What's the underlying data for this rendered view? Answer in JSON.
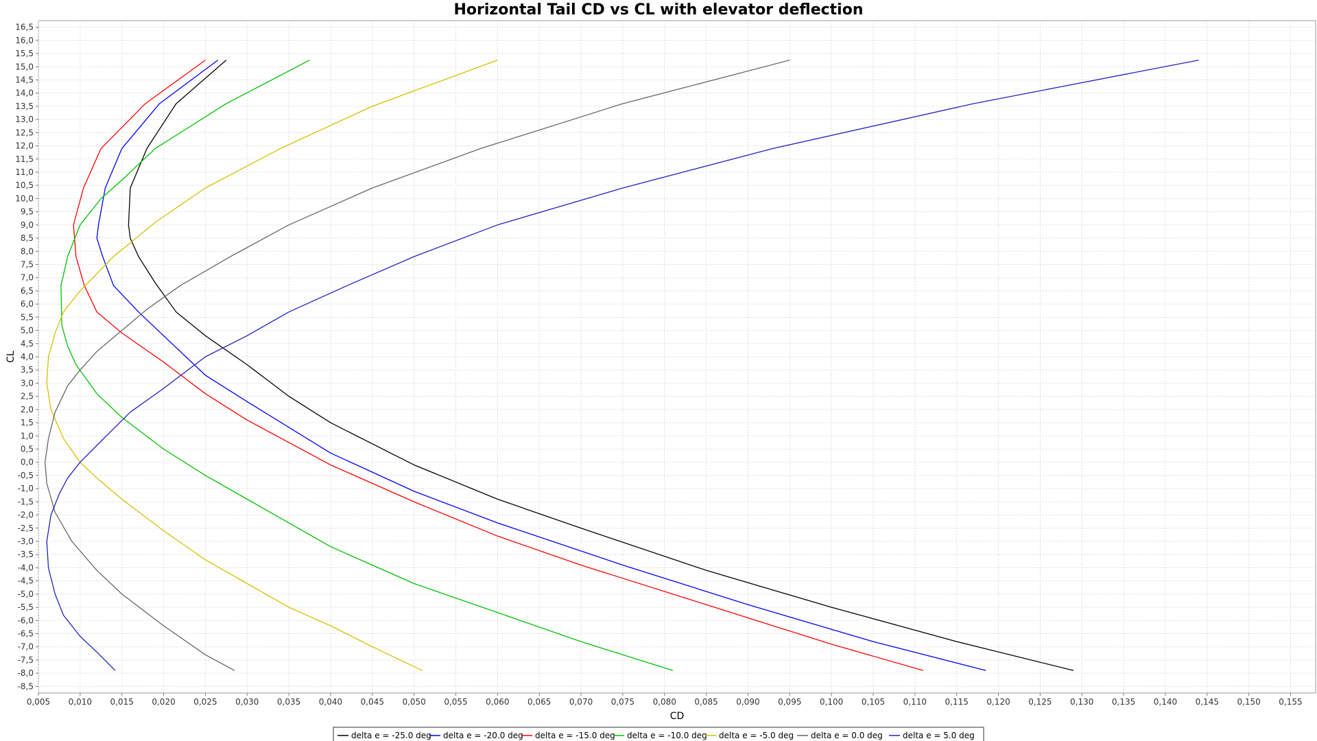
{
  "chart_data": {
    "type": "line",
    "title": "Horizontal Tail CD vs CL with elevator deflection",
    "xlabel": "CD",
    "ylabel": "CL",
    "xlim": [
      0.005,
      0.158
    ],
    "ylim": [
      -8.75,
      16.75
    ],
    "x_ticks": [
      "0,005",
      "0,010",
      "0,015",
      "0,020",
      "0,025",
      "0,030",
      "0,035",
      "0,040",
      "0,045",
      "0,050",
      "0,055",
      "0,060",
      "0,065",
      "0,070",
      "0,075",
      "0,080",
      "0,085",
      "0,090",
      "0,095",
      "0,100",
      "0,105",
      "0,110",
      "0,115",
      "0,120",
      "0,125",
      "0,130",
      "0,135",
      "0,140",
      "0,145",
      "0,150",
      "0,155"
    ],
    "y_ticks": [
      "-8,5",
      "-8,0",
      "-7,5",
      "-7,0",
      "-6,5",
      "-6,0",
      "-5,5",
      "-5,0",
      "-4,5",
      "-4,0",
      "-3,5",
      "-3,0",
      "-2,5",
      "-2,0",
      "-1,5",
      "-1,0",
      "-0,5",
      "0,0",
      "0,5",
      "1,0",
      "1,5",
      "2,0",
      "2,5",
      "3,0",
      "3,5",
      "4,0",
      "4,5",
      "5,0",
      "5,5",
      "6,0",
      "6,5",
      "7,0",
      "7,5",
      "8,0",
      "8,5",
      "9,0",
      "9,5",
      "10,0",
      "10,5",
      "11,0",
      "11,5",
      "12,0",
      "12,5",
      "13,0",
      "13,5",
      "14,0",
      "14,5",
      "15,0",
      "15,5",
      "16,0",
      "16,5"
    ],
    "grid": true,
    "legend_position": "bottom",
    "series": [
      {
        "name": "delta e = -25.0 deg",
        "color": "#000000",
        "points": [
          [
            0.129,
            -7.9
          ],
          [
            0.115,
            -6.8
          ],
          [
            0.1,
            -5.5
          ],
          [
            0.085,
            -4.1
          ],
          [
            0.07,
            -2.5
          ],
          [
            0.06,
            -1.4
          ],
          [
            0.05,
            -0.1
          ],
          [
            0.04,
            1.5
          ],
          [
            0.035,
            2.5
          ],
          [
            0.03,
            3.7
          ],
          [
            0.025,
            4.8
          ],
          [
            0.0215,
            5.7
          ],
          [
            0.019,
            6.8
          ],
          [
            0.017,
            7.8
          ],
          [
            0.016,
            8.5
          ],
          [
            0.0158,
            9.0
          ],
          [
            0.016,
            10.4
          ],
          [
            0.018,
            11.9
          ],
          [
            0.0215,
            13.6
          ],
          [
            0.0275,
            15.25
          ]
        ]
      },
      {
        "name": "delta e = -20.0 deg",
        "color": "#0000ff",
        "points": [
          [
            0.1185,
            -7.9
          ],
          [
            0.105,
            -6.8
          ],
          [
            0.09,
            -5.4
          ],
          [
            0.075,
            -3.9
          ],
          [
            0.06,
            -2.3
          ],
          [
            0.05,
            -1.1
          ],
          [
            0.04,
            0.35
          ],
          [
            0.03,
            2.3
          ],
          [
            0.025,
            3.3
          ],
          [
            0.02,
            4.8
          ],
          [
            0.017,
            5.7
          ],
          [
            0.014,
            6.7
          ],
          [
            0.0127,
            7.8
          ],
          [
            0.012,
            8.5
          ],
          [
            0.0122,
            9.0
          ],
          [
            0.013,
            10.4
          ],
          [
            0.015,
            11.9
          ],
          [
            0.0195,
            13.6
          ],
          [
            0.0265,
            15.25
          ]
        ]
      },
      {
        "name": "delta e = -15.0 deg",
        "color": "#ff0000",
        "points": [
          [
            0.111,
            -7.9
          ],
          [
            0.1,
            -6.9
          ],
          [
            0.085,
            -5.4
          ],
          [
            0.07,
            -3.9
          ],
          [
            0.06,
            -2.8
          ],
          [
            0.05,
            -1.5
          ],
          [
            0.04,
            -0.1
          ],
          [
            0.03,
            1.6
          ],
          [
            0.025,
            2.6
          ],
          [
            0.02,
            3.8
          ],
          [
            0.015,
            4.9
          ],
          [
            0.012,
            5.7
          ],
          [
            0.0105,
            6.7
          ],
          [
            0.0095,
            7.8
          ],
          [
            0.0092,
            9.0
          ],
          [
            0.0104,
            10.4
          ],
          [
            0.0125,
            11.9
          ],
          [
            0.0178,
            13.6
          ],
          [
            0.025,
            15.25
          ]
        ]
      },
      {
        "name": "delta e = -10.0 deg",
        "color": "#00c000",
        "points": [
          [
            0.081,
            -7.9
          ],
          [
            0.07,
            -6.8
          ],
          [
            0.06,
            -5.7
          ],
          [
            0.05,
            -4.6
          ],
          [
            0.04,
            -3.2
          ],
          [
            0.03,
            -1.4
          ],
          [
            0.025,
            -0.5
          ],
          [
            0.02,
            0.5
          ],
          [
            0.015,
            1.7
          ],
          [
            0.012,
            2.6
          ],
          [
            0.0095,
            3.7
          ],
          [
            0.0085,
            4.4
          ],
          [
            0.0078,
            5.2
          ],
          [
            0.0077,
            6.7
          ],
          [
            0.0085,
            7.8
          ],
          [
            0.01,
            9.0
          ],
          [
            0.0125,
            10.0
          ],
          [
            0.015,
            10.7
          ],
          [
            0.019,
            11.9
          ],
          [
            0.0275,
            13.6
          ],
          [
            0.0375,
            15.25
          ]
        ]
      },
      {
        "name": "delta e = -5.0 deg",
        "color": "#d4c000",
        "points": [
          [
            0.051,
            -7.9
          ],
          [
            0.045,
            -7.0
          ],
          [
            0.04,
            -6.2
          ],
          [
            0.035,
            -5.5
          ],
          [
            0.03,
            -4.6
          ],
          [
            0.025,
            -3.7
          ],
          [
            0.02,
            -2.6
          ],
          [
            0.015,
            -1.4
          ],
          [
            0.012,
            -0.6
          ],
          [
            0.01,
            0.0
          ],
          [
            0.008,
            0.9
          ],
          [
            0.0065,
            2.0
          ],
          [
            0.006,
            3.0
          ],
          [
            0.0062,
            4.0
          ],
          [
            0.007,
            4.9
          ],
          [
            0.008,
            5.7
          ],
          [
            0.01,
            6.5
          ],
          [
            0.014,
            7.8
          ],
          [
            0.019,
            9.1
          ],
          [
            0.025,
            10.4
          ],
          [
            0.034,
            11.9
          ],
          [
            0.045,
            13.5
          ],
          [
            0.06,
            15.25
          ]
        ]
      },
      {
        "name": "delta e = 0.0 deg",
        "color": "#666666",
        "points": [
          [
            0.0285,
            -7.9
          ],
          [
            0.025,
            -7.3
          ],
          [
            0.02,
            -6.2
          ],
          [
            0.015,
            -5.0
          ],
          [
            0.012,
            -4.1
          ],
          [
            0.009,
            -3.0
          ],
          [
            0.007,
            -1.9
          ],
          [
            0.006,
            -0.8
          ],
          [
            0.0058,
            0.0
          ],
          [
            0.0062,
            0.9
          ],
          [
            0.007,
            1.9
          ],
          [
            0.0085,
            2.9
          ],
          [
            0.01,
            3.5
          ],
          [
            0.012,
            4.2
          ],
          [
            0.015,
            5.0
          ],
          [
            0.018,
            5.8
          ],
          [
            0.022,
            6.7
          ],
          [
            0.028,
            7.8
          ],
          [
            0.035,
            9.0
          ],
          [
            0.045,
            10.4
          ],
          [
            0.058,
            11.9
          ],
          [
            0.075,
            13.6
          ],
          [
            0.095,
            15.25
          ]
        ]
      },
      {
        "name": "delta e = 5.0 deg",
        "color": "#2020c0",
        "points": [
          [
            0.0142,
            -7.9
          ],
          [
            0.012,
            -7.2
          ],
          [
            0.01,
            -6.6
          ],
          [
            0.008,
            -5.8
          ],
          [
            0.007,
            -5.0
          ],
          [
            0.0062,
            -4.0
          ],
          [
            0.006,
            -3.0
          ],
          [
            0.0065,
            -2.0
          ],
          [
            0.0075,
            -1.2
          ],
          [
            0.0085,
            -0.6
          ],
          [
            0.01,
            0.0
          ],
          [
            0.0125,
            0.8
          ],
          [
            0.016,
            1.9
          ],
          [
            0.02,
            2.8
          ],
          [
            0.025,
            4.0
          ],
          [
            0.03,
            4.8
          ],
          [
            0.035,
            5.7
          ],
          [
            0.042,
            6.7
          ],
          [
            0.05,
            7.8
          ],
          [
            0.06,
            9.0
          ],
          [
            0.075,
            10.4
          ],
          [
            0.093,
            11.9
          ],
          [
            0.117,
            13.6
          ],
          [
            0.144,
            15.25
          ]
        ]
      }
    ]
  }
}
